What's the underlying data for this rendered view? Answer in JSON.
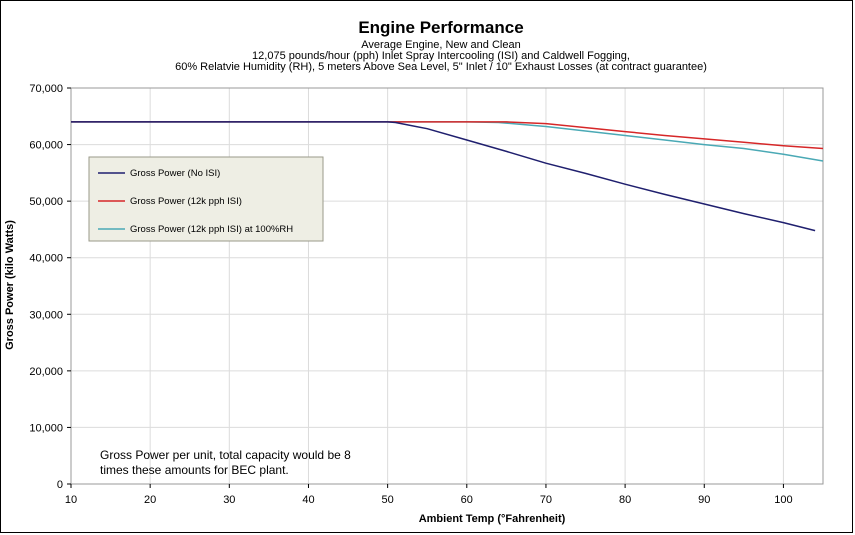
{
  "chart_data": {
    "type": "line",
    "title": "Engine Performance",
    "subtitle": [
      "Average Engine, New and Clean",
      "12,075 pounds/hour (pph) Inlet Spray Intercooling (ISI) and Caldwell Fogging,",
      "60% Relatvie Humidity (RH), 5 meters Above Sea Level, 5\" Inlet / 10\" Exhaust Losses (at contract guarantee)"
    ],
    "xlabel": "Ambient Temp (°Fahrenheit)",
    "ylabel": "Gross Power (kilo Watts)",
    "xlim": [
      10,
      105
    ],
    "ylim": [
      0,
      70000
    ],
    "xticks": [
      10,
      20,
      30,
      40,
      50,
      60,
      70,
      80,
      90,
      100
    ],
    "xtick_labels": [
      "10",
      "20",
      "30",
      "40",
      "50",
      "60",
      "70",
      "80",
      "90",
      "100"
    ],
    "yticks": [
      0,
      10000,
      20000,
      30000,
      40000,
      50000,
      60000,
      70000
    ],
    "ytick_labels": [
      "0",
      "10,000",
      "20,000",
      "30,000",
      "40,000",
      "50,000",
      "60,000",
      "70,000"
    ],
    "grid": true,
    "legend_position": "upper-left",
    "note": [
      "Gross Power per unit, total capacity would be 8",
      "times these amounts for BEC plant."
    ],
    "series": [
      {
        "name": "Gross Power (No ISI)",
        "color": "#1f1f6e",
        "x": [
          10,
          20,
          30,
          40,
          50,
          51,
          55,
          60,
          65,
          70,
          75,
          80,
          85,
          90,
          95,
          100,
          104
        ],
        "y": [
          64000,
          64000,
          64000,
          64000,
          64000,
          63900,
          62800,
          60800,
          58800,
          56700,
          54900,
          53000,
          51200,
          49500,
          47800,
          46200,
          44800
        ]
      },
      {
        "name": "Gross Power (12k pph ISI)",
        "color": "#d62728",
        "x": [
          10,
          20,
          30,
          40,
          50,
          60,
          65,
          70,
          75,
          80,
          85,
          90,
          95,
          100,
          105
        ],
        "y": [
          64000,
          64000,
          64000,
          64000,
          64000,
          64000,
          64000,
          63700,
          63000,
          62300,
          61600,
          61000,
          60400,
          59800,
          59300
        ]
      },
      {
        "name": "Gross Power (12k pph ISI) at 100%RH",
        "color": "#4aa9b5",
        "x": [
          10,
          20,
          30,
          40,
          50,
          60,
          64,
          70,
          75,
          80,
          85,
          90,
          95,
          100,
          105
        ],
        "y": [
          64000,
          64000,
          64000,
          64000,
          64000,
          64000,
          63900,
          63200,
          62400,
          61600,
          60800,
          60000,
          59300,
          58300,
          57100
        ]
      }
    ]
  }
}
